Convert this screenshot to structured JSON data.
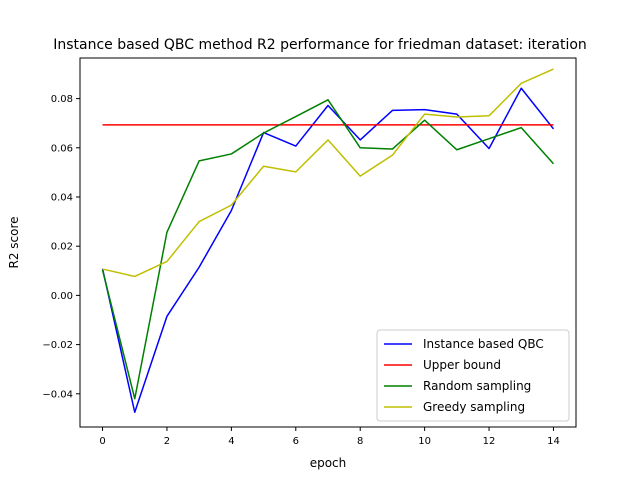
{
  "chart_data": {
    "type": "line",
    "title": "Instance based QBC method R2 performance for friedman dataset: iteration",
    "xlabel": "epoch",
    "ylabel": "R2 score",
    "xlim": [
      -0.7,
      14.7
    ],
    "ylim": [
      -0.0535,
      0.0965
    ],
    "xticks": [
      0,
      2,
      4,
      6,
      8,
      10,
      12,
      14
    ],
    "xtick_labels": [
      "0",
      "2",
      "4",
      "6",
      "8",
      "10",
      "12",
      "14"
    ],
    "yticks": [
      -0.04,
      -0.02,
      0.0,
      0.02,
      0.04,
      0.06,
      0.08
    ],
    "ytick_labels": [
      "−0.04",
      "−0.02",
      "0.00",
      "0.02",
      "0.04",
      "0.06",
      "0.08"
    ],
    "grid": false,
    "legend_position": "lower-right",
    "x": [
      0,
      1,
      2,
      3,
      4,
      5,
      6,
      7,
      8,
      9,
      10,
      11,
      12,
      13,
      14
    ],
    "series": [
      {
        "name": "Instance based QBC",
        "color": "#0000ff",
        "values": [
          0.0108,
          -0.0475,
          -0.0085,
          0.0115,
          0.0345,
          0.0662,
          0.0607,
          0.0772,
          0.0632,
          0.0752,
          0.0755,
          0.0737,
          0.0597,
          0.0842,
          0.0677
        ]
      },
      {
        "name": "Upper bound",
        "color": "#ff0000",
        "values": [
          0.0693,
          0.0693,
          0.0693,
          0.0693,
          0.0693,
          0.0693,
          0.0693,
          0.0693,
          0.0693,
          0.0693,
          0.0693,
          0.0693,
          0.0693,
          0.0693,
          0.0693
        ]
      },
      {
        "name": "Random sampling",
        "color": "#008000",
        "values": [
          0.0103,
          -0.042,
          0.0257,
          0.0547,
          0.0575,
          0.066,
          0.0727,
          0.0795,
          0.06,
          0.0595,
          0.0712,
          0.0592,
          0.0637,
          0.0682,
          0.0535
        ]
      },
      {
        "name": "Greedy sampling",
        "color": "#bfbf00",
        "values": [
          0.0107,
          0.0077,
          0.0138,
          0.03,
          0.0367,
          0.0525,
          0.0502,
          0.0632,
          0.0485,
          0.057,
          0.0737,
          0.0725,
          0.073,
          0.0862,
          0.092
        ]
      }
    ]
  }
}
